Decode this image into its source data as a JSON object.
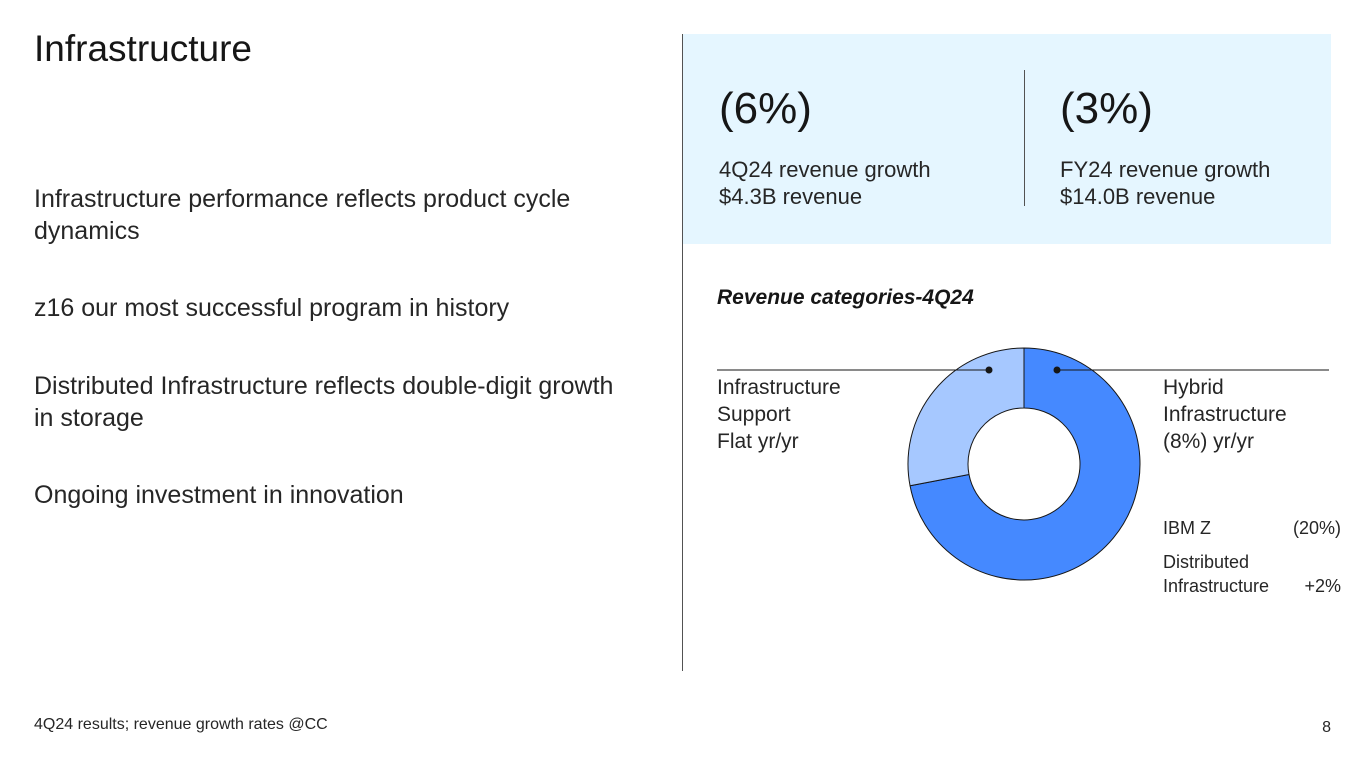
{
  "slide": {
    "title": "Infrastructure",
    "bullets": [
      "Infrastructure performance reflects product cycle dynamics",
      "z16 our most successful program in history",
      "Distributed Infrastructure reflects double-digit growth in storage",
      "Ongoing investment in innovation"
    ],
    "footnote": "4Q24 results; revenue growth rates @CC",
    "page_number": "8"
  },
  "kpis": [
    {
      "value": "(6%)",
      "label_line1": "4Q24 revenue growth",
      "label_line2": "$4.3B revenue"
    },
    {
      "value": "(3%)",
      "label_line1": "FY24 revenue growth",
      "label_line2": "$14.0B revenue"
    }
  ],
  "colors": {
    "panel_bg": "#e5f6ff",
    "hybrid_segment": "#4589ff",
    "support_segment": "#a6c8ff",
    "divider": "#525252"
  },
  "chart_data": {
    "type": "pie",
    "title": "Revenue categories-4Q24",
    "segments": [
      {
        "name": "Hybrid Infrastructure",
        "value": 72,
        "color": "#4589ff"
      },
      {
        "name": "Infrastructure Support",
        "value": 28,
        "color": "#a6c8ff"
      }
    ],
    "labels": {
      "support": {
        "line1": "Infrastructure",
        "line2": "Support",
        "line3": "Flat yr/yr"
      },
      "hybrid": {
        "line1": "Hybrid",
        "line2": "Infrastructure",
        "line3": "(8%) yr/yr"
      }
    },
    "hybrid_breakdown": [
      {
        "name": "IBM Z",
        "value": "(20%)"
      },
      {
        "name_line1": "Distributed",
        "name_line2": "Infrastructure",
        "value": "+2%"
      }
    ]
  }
}
